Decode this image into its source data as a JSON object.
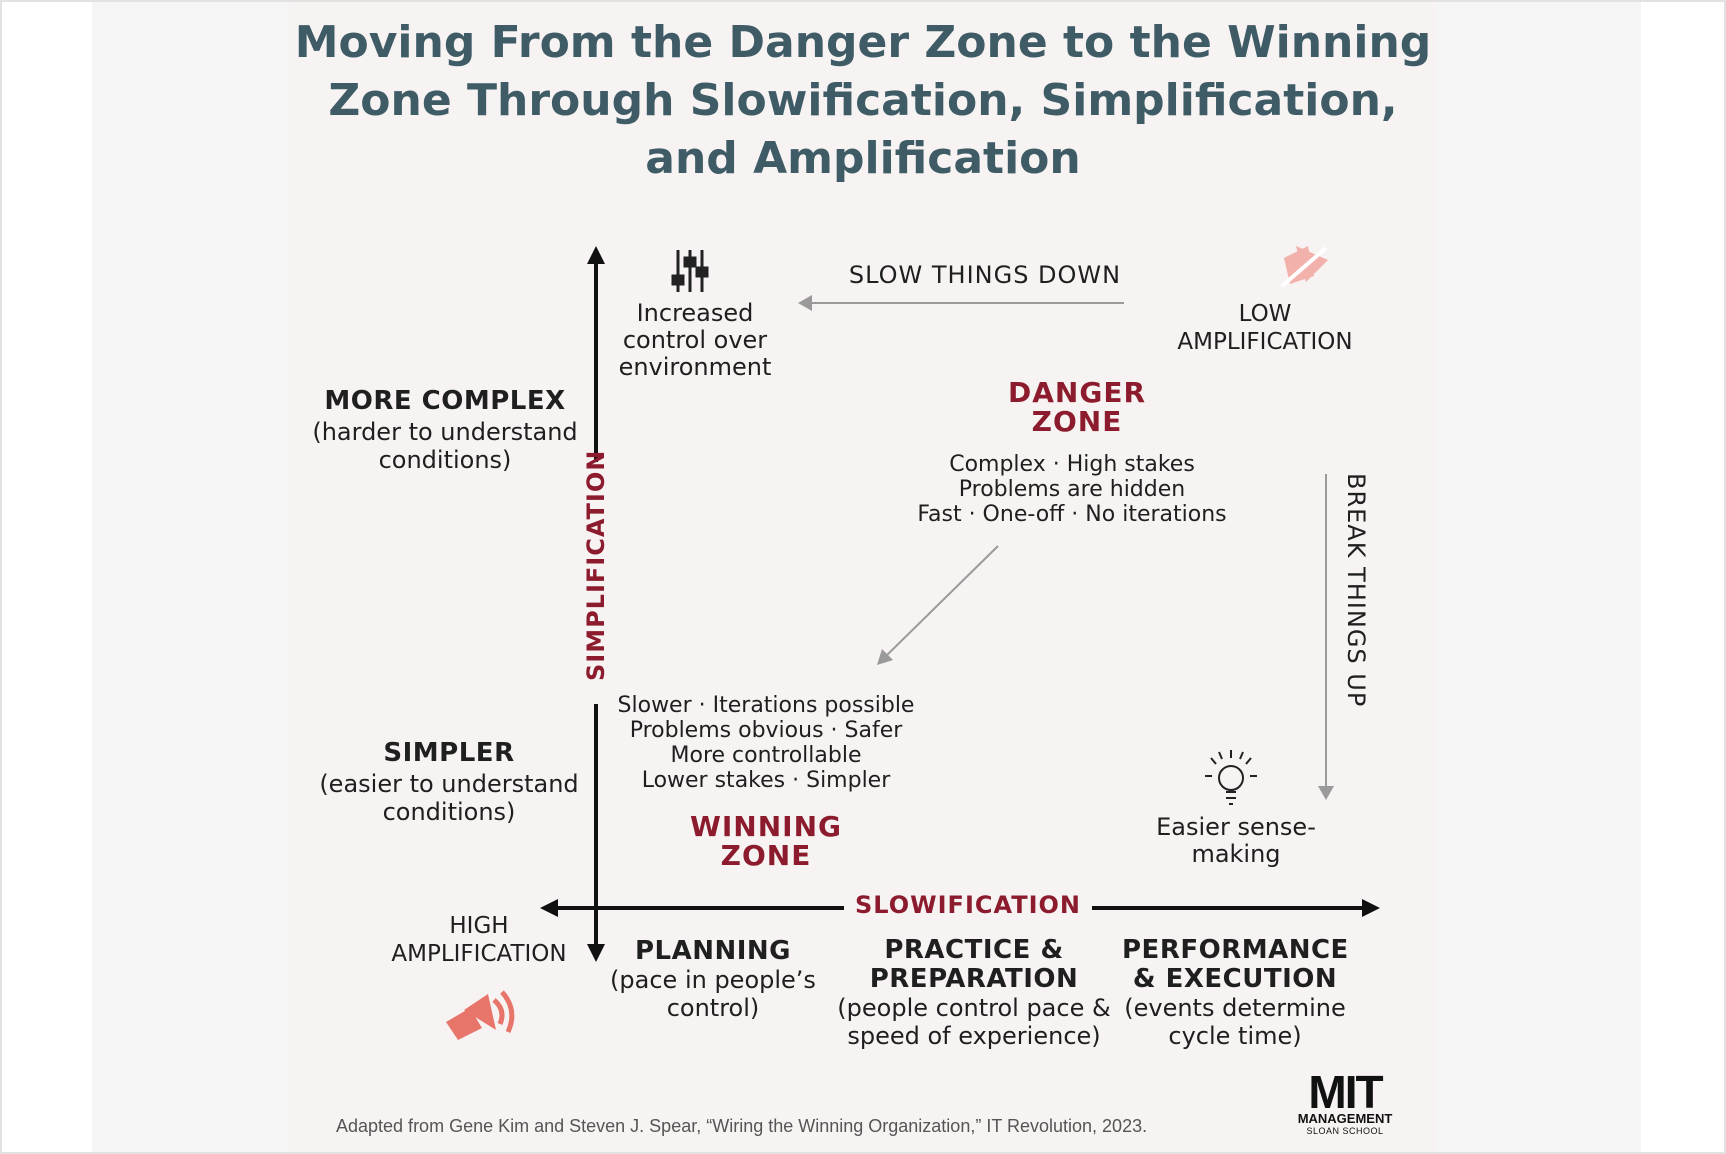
{
  "title_lines": [
    "Moving From the Danger Zone to the Winning",
    "Zone Through Slowification, Simplification,",
    "and Amplification"
  ],
  "colors": {
    "title": "#3e5b66",
    "zone": "#8c1c2d",
    "accent_icon": "#e8756a",
    "axis": "#111111",
    "arrow_gray": "#999999",
    "panel": "#f6f3f2"
  },
  "axes": {
    "vertical_label": "SIMPLIFICATION",
    "horizontal_label": "SLOWIFICATION"
  },
  "left_labels": {
    "top_title": "MORE COMPLEX",
    "top_sub": [
      "(harder to understand",
      "conditions)"
    ],
    "bottom_title": "SIMPLER",
    "bottom_sub": [
      "(easier to understand",
      "conditions)"
    ]
  },
  "top_left": {
    "icon": "sliders-icon",
    "lines": [
      "Increased",
      "control over",
      "environment"
    ]
  },
  "slow_things_down": "SLOW THINGS DOWN",
  "low_amp": {
    "icon": "muted-speaker-icon",
    "lines": [
      "LOW",
      "AMPLIFICATION"
    ]
  },
  "danger_zone": {
    "title": [
      "DANGER",
      "ZONE"
    ],
    "desc": [
      "Complex · High stakes",
      "Problems are hidden",
      "Fast · One-off · No iterations"
    ]
  },
  "break_things_up": "BREAK THINGS UP",
  "winning_zone": {
    "desc": [
      "Slower · Iterations possible",
      "Problems obvious · Safer",
      "More controllable",
      "Lower stakes · Simpler"
    ],
    "title": [
      "WINNING",
      "ZONE"
    ]
  },
  "sense_making": {
    "icon": "lightbulb-icon",
    "lines": [
      "Easier sense-",
      "making"
    ]
  },
  "high_amp": {
    "icon": "speaker-icon",
    "lines": [
      "HIGH",
      "AMPLIFICATION"
    ]
  },
  "bottom_columns": [
    {
      "title": [
        "PLANNING"
      ],
      "sub": [
        "(pace in people’s",
        "control)"
      ]
    },
    {
      "title": [
        "PRACTICE &",
        "PREPARATION"
      ],
      "sub": [
        "(people control pace &",
        "speed of experience)"
      ]
    },
    {
      "title": [
        "PERFORMANCE",
        "& EXECUTION"
      ],
      "sub": [
        "(events determine",
        "cycle time)"
      ]
    }
  ],
  "footer": "Adapted from Gene Kim and Steven J. Spear, “Wiring the Winning Organization,” IT Revolution, 2023.",
  "logo": {
    "big": "MIT",
    "line1": "MANAGEMENT",
    "line2": "SLOAN SCHOOL"
  }
}
